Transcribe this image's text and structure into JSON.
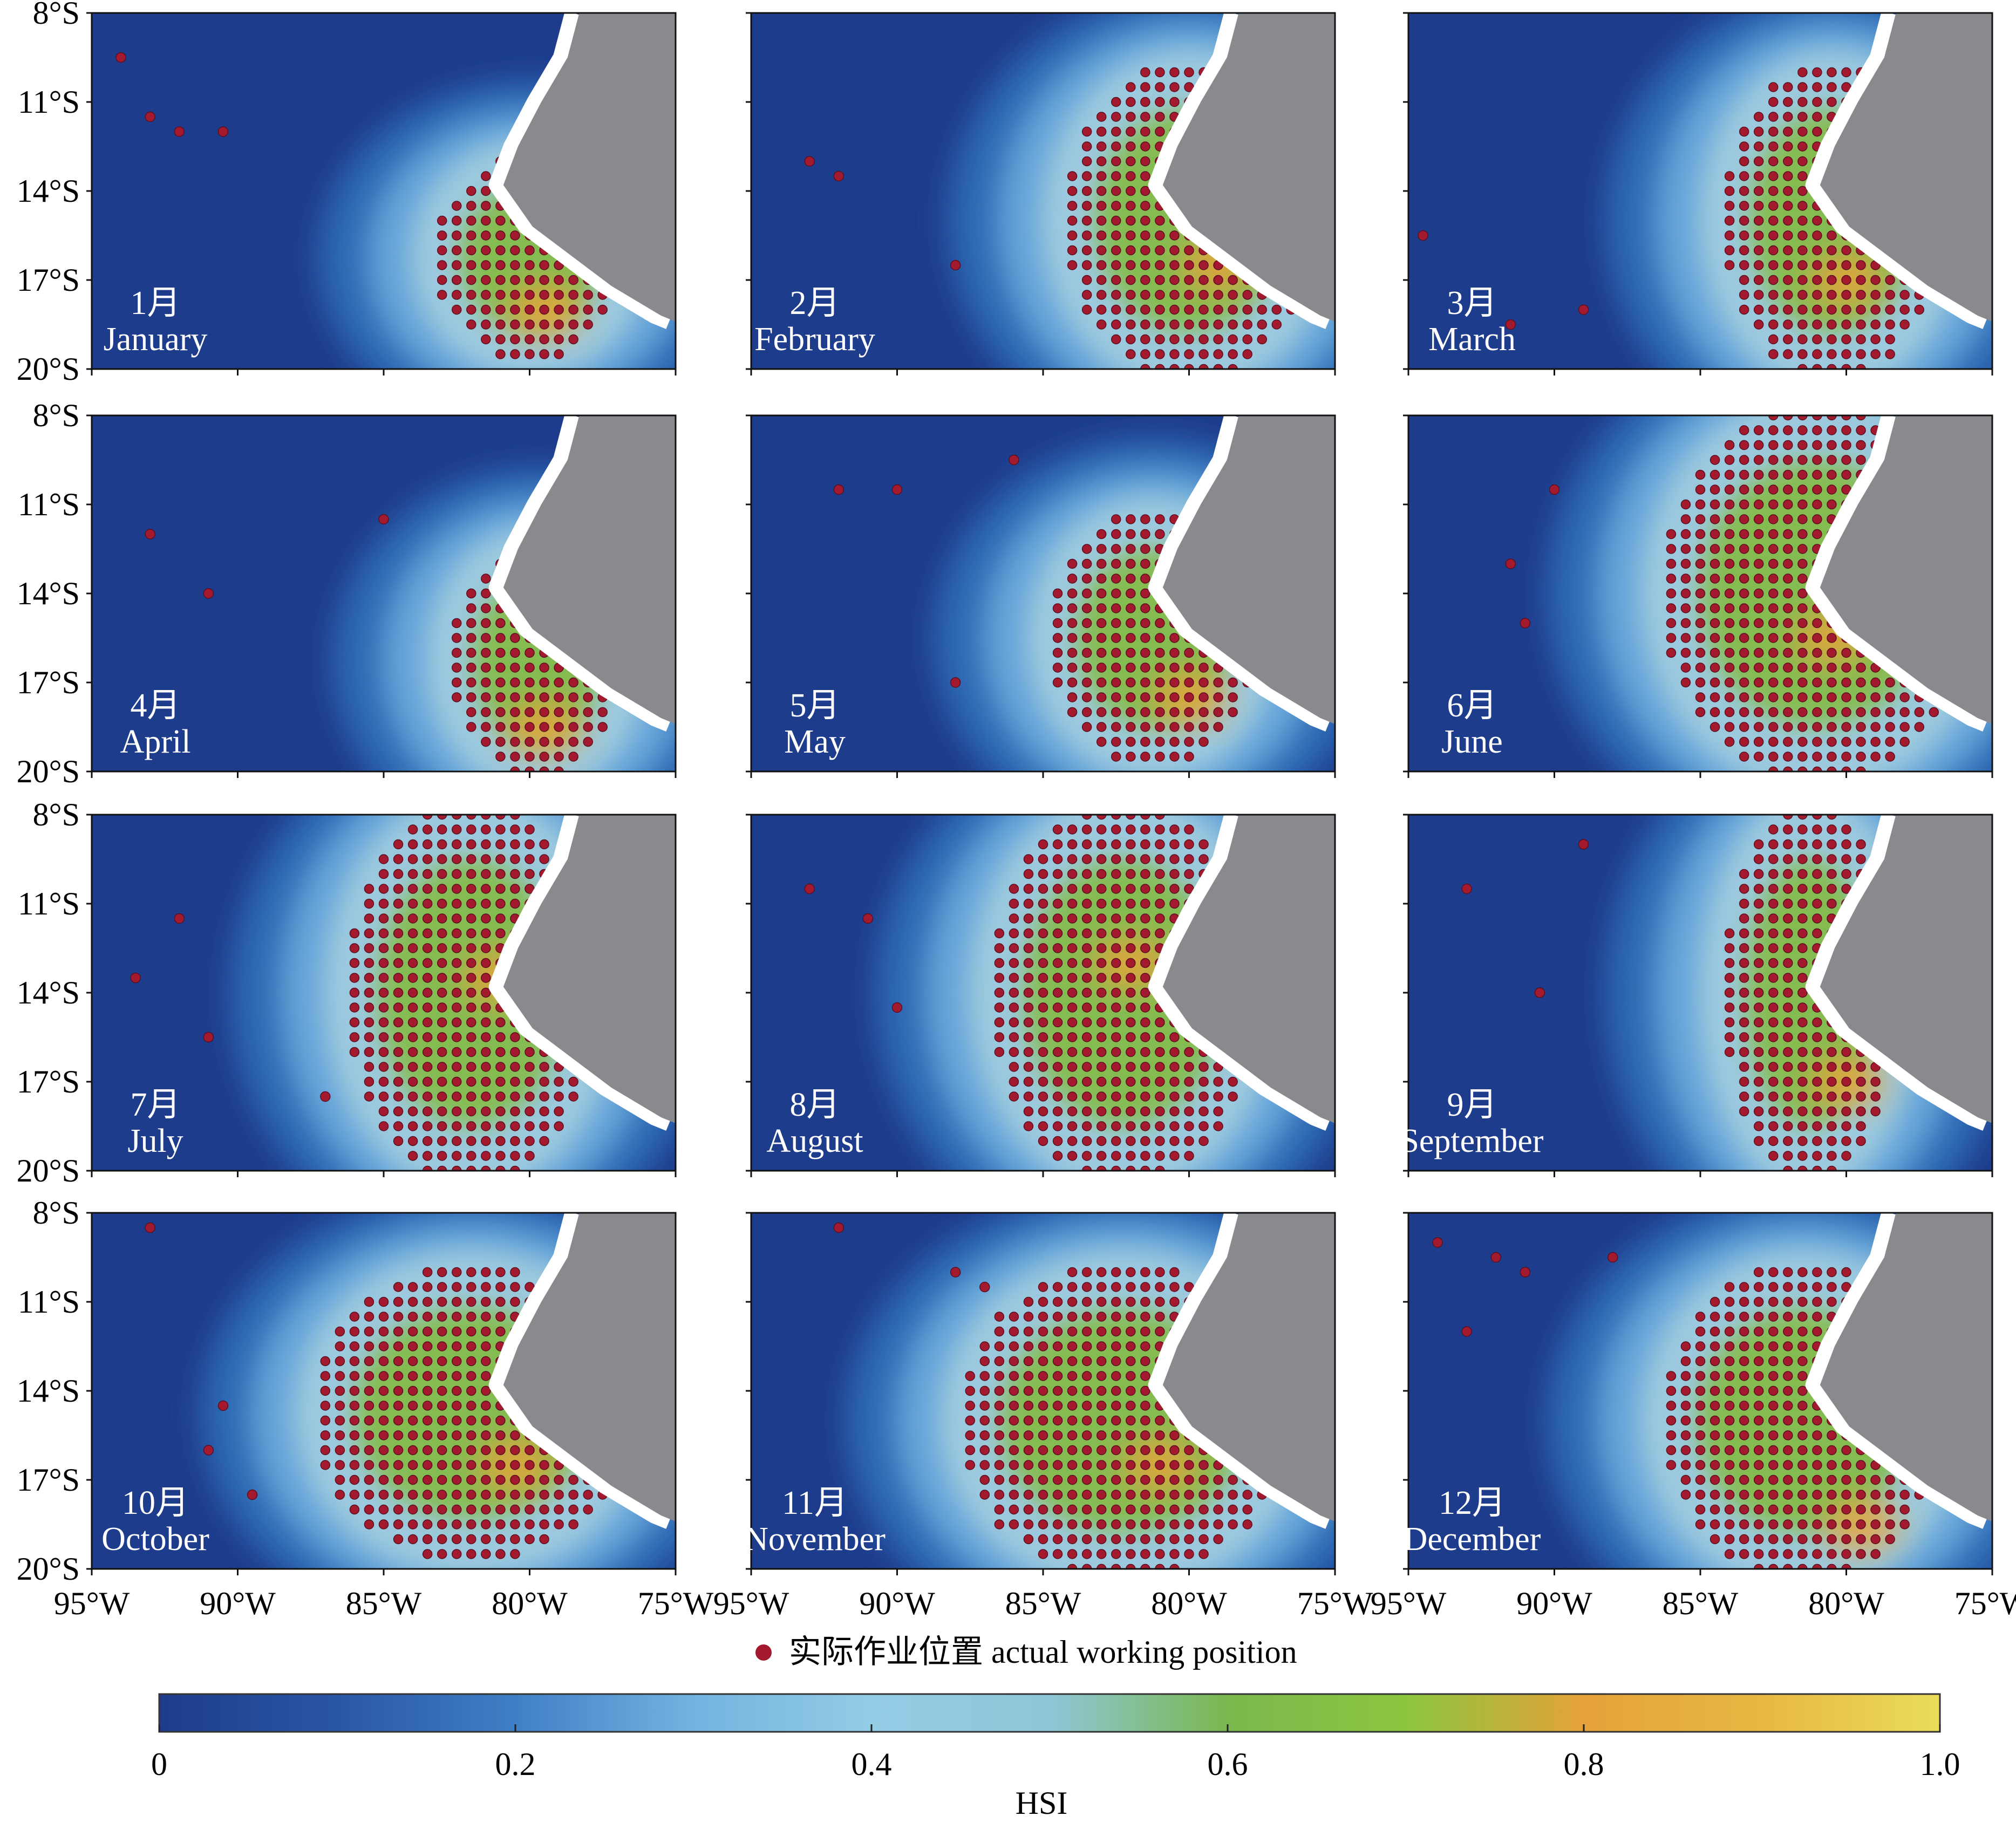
{
  "figure": {
    "legend_label": "实际作业位置 actual working position",
    "colorbar": {
      "title": "HSI",
      "ticks": [
        "0",
        "0.2",
        "0.4",
        "0.6",
        "0.8",
        "1.0"
      ],
      "colors": [
        "#1e3c8c",
        "#2a56a6",
        "#3f7fc6",
        "#73b3e0",
        "#93cce5",
        "#8fc6d8",
        "#7ab84e",
        "#8cc63f",
        "#e5a23a",
        "#e7b842",
        "#eadc5a"
      ]
    },
    "axes": {
      "lat_ticks": [
        "8°S",
        "11°S",
        "14°S",
        "17°S",
        "20°S"
      ],
      "lon_ticks": [
        "95°W",
        "90°W",
        "85°W",
        "80°W",
        "75°W"
      ]
    },
    "point_color": "#a3192e",
    "land_color": "#8a8a8e",
    "ocean_color": "#1e3c8c"
  },
  "chart_data": {
    "type": "map",
    "variable": "HSI",
    "extent": {
      "lon": [
        -95,
        -75
      ],
      "lat": [
        -20,
        -8
      ]
    },
    "months": [
      {
        "zh": "1月",
        "en": "January",
        "core": {
          "lat": [
            -19.5,
            -13
          ],
          "lon": [
            -83,
            -77
          ]
        },
        "hot_spot": [
          -79.5,
          -18
        ],
        "outliers": [
          [
            -93,
            -11.5
          ],
          [
            -92,
            -12
          ],
          [
            -90.5,
            -12
          ],
          [
            -94,
            -9.5
          ]
        ]
      },
      {
        "zh": "2月",
        "en": "February",
        "core": {
          "lat": [
            -20,
            -10
          ],
          "lon": [
            -84,
            -76
          ]
        },
        "hot_spot": [
          -79,
          -16.5
        ],
        "outliers": [
          [
            -93,
            -13
          ],
          [
            -92,
            -13.5
          ],
          [
            -88,
            -16.5
          ]
        ]
      },
      {
        "zh": "3月",
        "en": "March",
        "core": {
          "lat": [
            -20,
            -10
          ],
          "lon": [
            -84,
            -77
          ]
        },
        "hot_spot": [
          -80,
          -17
        ],
        "outliers": [
          [
            -94.5,
            -15.5
          ],
          [
            -91.5,
            -18.5
          ],
          [
            -89,
            -18
          ]
        ]
      },
      {
        "zh": "4月",
        "en": "April",
        "core": {
          "lat": [
            -20,
            -12.5
          ],
          "lon": [
            -82.5,
            -77
          ]
        },
        "hot_spot": [
          -79.5,
          -18.5
        ],
        "outliers": [
          [
            -93,
            -12
          ],
          [
            -91,
            -14
          ],
          [
            -85,
            -11.5
          ]
        ]
      },
      {
        "zh": "5月",
        "en": "May",
        "core": {
          "lat": [
            -19.5,
            -11.5
          ],
          "lon": [
            -84.5,
            -78
          ]
        },
        "hot_spot": [
          -80,
          -17.5
        ],
        "outliers": [
          [
            -92,
            -10.5
          ],
          [
            -90,
            -10.5
          ],
          [
            -88,
            -17
          ],
          [
            -86,
            -9.5
          ]
        ]
      },
      {
        "zh": "6月",
        "en": "June",
        "core": {
          "lat": [
            -20,
            -8
          ],
          "lon": [
            -86,
            -76
          ]
        },
        "hot_spot": [
          -80.5,
          -15.5
        ],
        "outliers": [
          [
            -91.5,
            -13
          ],
          [
            -91,
            -15
          ],
          [
            -90,
            -10.5
          ]
        ]
      },
      {
        "zh": "7月",
        "en": "July",
        "core": {
          "lat": [
            -20,
            -8
          ],
          "lon": [
            -86,
            -78
          ]
        },
        "hot_spot": [
          -81,
          -13.5
        ],
        "outliers": [
          [
            -93.5,
            -13.5
          ],
          [
            -92,
            -11.5
          ],
          [
            -91,
            -15.5
          ],
          [
            -87,
            -17.5
          ]
        ]
      },
      {
        "zh": "8月",
        "en": "August",
        "core": {
          "lat": [
            -20,
            -8
          ],
          "lon": [
            -86.5,
            -78
          ]
        },
        "hot_spot": [
          -82,
          -13
        ],
        "outliers": [
          [
            -93,
            -10.5
          ],
          [
            -91,
            -11.5
          ],
          [
            -90,
            -14.5
          ]
        ]
      },
      {
        "zh": "9月",
        "en": "September",
        "core": {
          "lat": [
            -20,
            -8
          ],
          "lon": [
            -84,
            -78.5
          ]
        },
        "hot_spot": [
          -80,
          -17
        ],
        "outliers": [
          [
            -93,
            -10.5
          ],
          [
            -90.5,
            -14
          ],
          [
            -89,
            -9
          ]
        ]
      },
      {
        "zh": "10月",
        "en": "October",
        "core": {
          "lat": [
            -19.5,
            -10
          ],
          "lon": [
            -87,
            -77
          ]
        },
        "hot_spot": [
          -80.5,
          -16.5
        ],
        "outliers": [
          [
            -93,
            -8.5
          ],
          [
            -91,
            -16
          ],
          [
            -89.5,
            -17.5
          ],
          [
            -90.5,
            -14.5
          ]
        ]
      },
      {
        "zh": "11月",
        "en": "November",
        "core": {
          "lat": [
            -20,
            -10
          ],
          "lon": [
            -87.5,
            -77
          ]
        },
        "hot_spot": [
          -81,
          -16.5
        ],
        "outliers": [
          [
            -92,
            -8.5
          ],
          [
            -88,
            -10
          ],
          [
            -87,
            -10.5
          ]
        ]
      },
      {
        "zh": "12月",
        "en": "December",
        "core": {
          "lat": [
            -20,
            -10
          ],
          "lon": [
            -86,
            -77
          ]
        },
        "hot_spot": [
          -79.5,
          -18.5
        ],
        "outliers": [
          [
            -94,
            -9
          ],
          [
            -92,
            -9.5
          ],
          [
            -91,
            -10
          ],
          [
            -88,
            -9.5
          ],
          [
            -93,
            -12
          ]
        ]
      }
    ]
  }
}
